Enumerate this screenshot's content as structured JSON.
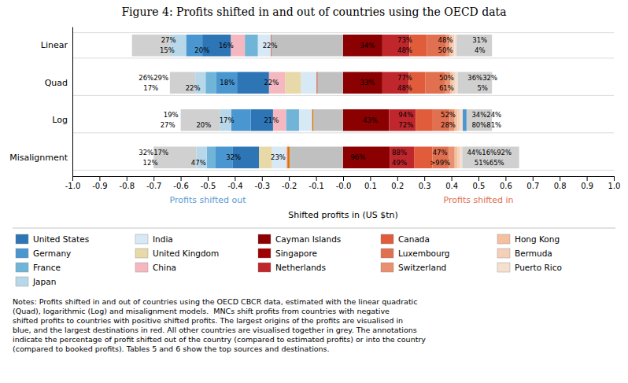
{
  "chart_data": {
    "type": "bar",
    "orientation": "horizontal",
    "stacked": true,
    "grid": true,
    "legend": "bottom",
    "title": "Figure 4: Profits shifted in and out of countries using the OECD data",
    "xlabel": "Shifted profits in (US $tn)",
    "xlim": [
      -1.0,
      1.0
    ],
    "xticks": [
      {
        "value": -1.0,
        "label": "-1.0"
      },
      -0.9,
      -0.8,
      -0.7,
      -0.6,
      -0.5,
      -0.4,
      -0.3,
      -0.2,
      -0.1,
      {
        "value": 0.0,
        "label": "-0.0"
      },
      0.1,
      0.2,
      0.3,
      0.4,
      0.5,
      0.6,
      0.7,
      0.8,
      0.9,
      {
        "value": 1.0,
        "label": "1.0"
      }
    ],
    "categories": [
      "Linear",
      "Quad",
      "Log",
      "Misalignment"
    ],
    "series": [
      {
        "values": [
          -0.265,
          -0.095,
          -0.11,
          -0.198
        ],
        "colors": [
          "#c0c0c0",
          "#c0c0c0",
          "#c0c0c0",
          "#c0c0c0"
        ]
      },
      {
        "values": [
          -0.002,
          -0.003,
          -0.005,
          -0.008
        ],
        "colors": [
          "#cc2200",
          "#cc2200",
          "#e07000",
          "#e07000"
        ]
      },
      {
        "values": [
          -0.048,
          -0.058,
          -0.048,
          -0.005
        ],
        "colors": [
          "#d6e9f5",
          "#d6e9f5",
          "#d6e9f5",
          "#f5b8c0"
        ]
      },
      {
        "values": [
          -0.048,
          -0.058,
          -0.048,
          -0.052
        ],
        "colors": [
          "#70b5d8",
          "#e8d9a8",
          "#70b5d8",
          "#d6e9f5"
        ]
      },
      {
        "values": [
          -0.052,
          -0.06,
          -0.048,
          -0.048
        ],
        "colors": [
          "#f5b8c0",
          "#f5b8c0",
          "#f5b8c0",
          "#e8d9a8"
        ]
      },
      {
        "values": [
          -0.105,
          -0.118,
          -0.082,
          -0.098
        ],
        "colors": [
          "#2e75b6",
          "#2e75b6",
          "#2e75b6",
          "#2e75b6"
        ]
      },
      {
        "values": [
          -0.06,
          -0.078,
          -0.072,
          -0.062
        ],
        "colors": [
          "#4a96d0",
          "#4a96d0",
          "#4a96d0",
          "#4a96d0"
        ]
      },
      {
        "values": [
          -0.06,
          -0.038,
          -0.043,
          -0.033
        ],
        "colors": [
          "#b8d8ea",
          "#70b5d8",
          "#b8d8ea",
          "#70b5d8"
        ]
      },
      {
        "values": [
          -0.14,
          -0.038,
          -0.144,
          -0.038
        ],
        "colors": [
          "#d0d0d0",
          "#b8d8ea",
          "#d0d0d0",
          "#b8d8ea"
        ]
      },
      {
        "values": [
          null,
          -0.094,
          null,
          -0.158
        ],
        "colors": [
          null,
          "#d0d0d0",
          null,
          "#d0d0d0"
        ]
      },
      {
        "values": [
          0.145,
          0.145,
          0.17,
          0.172
        ],
        "colors": [
          "#8b0000",
          "#8b0000",
          "#8b0000",
          "#8b0000"
        ]
      },
      {
        "values": [
          0.1,
          0.098,
          0.098,
          0.09
        ],
        "colors": [
          "#c0272d",
          "#c0272d",
          "#c0272d",
          "#c0272d"
        ]
      },
      {
        "values": [
          0.065,
          0.06,
          0.063,
          0.068
        ],
        "colors": [
          "#e05c3a",
          "#e05c3a",
          "#e05c3a",
          "#e05c3a"
        ]
      },
      {
        "values": [
          0.068,
          0.072,
          0.063,
          0.06
        ],
        "colors": [
          "#e07050",
          "#e07050",
          "#e07050",
          "#e07050"
        ]
      },
      {
        "values": [
          0.015,
          0.02,
          0.018,
          0.022
        ],
        "colors": [
          "#e89070",
          "#e89070",
          "#e89070",
          "#e89070"
        ]
      },
      {
        "values": [
          0.01,
          0.01,
          0.01,
          0.01
        ],
        "colors": [
          "#f5c0a0",
          "#f5c0a0",
          "#f5c0a0",
          "#f5c0a0"
        ]
      },
      {
        "values": [
          0.008,
          0.01,
          0.01,
          0.01
        ],
        "colors": [
          "#f5d0b8",
          "#f5d0b8",
          "#f5d0b8",
          "#f5d0b8"
        ]
      },
      {
        "values": [
          0.008,
          0.008,
          0.01,
          0.008
        ],
        "colors": [
          "#f5e0d0",
          "#f5e0d0",
          "#f5e0d0",
          "#f5e0d0"
        ]
      },
      {
        "values": [
          0.131,
          0.127,
          0.014,
          0.21
        ],
        "colors": [
          "#d0d0d0",
          "#d0d0d0",
          "#4a96d0",
          "#d0d0d0"
        ]
      },
      {
        "values": [
          null,
          null,
          0.094,
          null
        ],
        "colors": [
          null,
          null,
          "#d0d0d0",
          null
        ]
      }
    ],
    "annotations": [
      {
        "category": "Linear",
        "text": "27%",
        "x": -0.645,
        "dy": 0.14
      },
      {
        "category": "Linear",
        "text": "15%",
        "x": -0.65,
        "dy": -0.14
      },
      {
        "category": "Linear",
        "text": "20%",
        "x": -0.521,
        "dy": -0.14
      },
      {
        "category": "Linear",
        "text": "16%",
        "x": -0.432,
        "dy": 0.0
      },
      {
        "category": "Linear",
        "text": "22%",
        "x": -0.27,
        "dy": 0.0
      },
      {
        "category": "Linear",
        "text": "34%",
        "x": 0.09,
        "dy": 0.0
      },
      {
        "category": "Linear",
        "text": "73%",
        "x": 0.228,
        "dy": 0.14
      },
      {
        "category": "Linear",
        "text": "48%",
        "x": 0.228,
        "dy": -0.14
      },
      {
        "category": "Linear",
        "text": "48%",
        "x": 0.378,
        "dy": 0.14
      },
      {
        "category": "Linear",
        "text": "50%",
        "x": 0.378,
        "dy": -0.14
      },
      {
        "category": "Linear",
        "text": "31%",
        "x": 0.505,
        "dy": 0.14
      },
      {
        "category": "Linear",
        "text": "4%",
        "x": 0.505,
        "dy": -0.14
      },
      {
        "category": "Quad",
        "text": "26%29%",
        "x": -0.7,
        "dy": 0.14
      },
      {
        "category": "Quad",
        "text": "17%",
        "x": -0.71,
        "dy": -0.14
      },
      {
        "category": "Quad",
        "text": "22%",
        "x": -0.555,
        "dy": -0.14
      },
      {
        "category": "Quad",
        "text": "18%",
        "x": -0.428,
        "dy": 0.0
      },
      {
        "category": "Quad",
        "text": "22%",
        "x": -0.265,
        "dy": 0.0
      },
      {
        "category": "Quad",
        "text": "33%",
        "x": 0.09,
        "dy": 0.0
      },
      {
        "category": "Quad",
        "text": "77%",
        "x": 0.228,
        "dy": 0.14
      },
      {
        "category": "Quad",
        "text": "48%",
        "x": 0.228,
        "dy": -0.14
      },
      {
        "category": "Quad",
        "text": "50%",
        "x": 0.382,
        "dy": 0.14
      },
      {
        "category": "Quad",
        "text": "61%",
        "x": 0.382,
        "dy": -0.14
      },
      {
        "category": "Quad",
        "text": "36%32%",
        "x": 0.515,
        "dy": 0.14
      },
      {
        "category": "Quad",
        "text": "5%",
        "x": 0.515,
        "dy": -0.14
      },
      {
        "category": "Log",
        "text": "19%",
        "x": -0.636,
        "dy": 0.14
      },
      {
        "category": "Log",
        "text": "27%",
        "x": -0.648,
        "dy": -0.14
      },
      {
        "category": "Log",
        "text": "20%",
        "x": -0.515,
        "dy": -0.14
      },
      {
        "category": "Log",
        "text": "17%",
        "x": -0.43,
        "dy": 0.0
      },
      {
        "category": "Log",
        "text": "21%",
        "x": -0.265,
        "dy": 0.0
      },
      {
        "category": "Log",
        "text": "43%",
        "x": 0.1,
        "dy": 0.0
      },
      {
        "category": "Log",
        "text": "94%",
        "x": 0.232,
        "dy": 0.14
      },
      {
        "category": "Log",
        "text": "72%",
        "x": 0.232,
        "dy": -0.14
      },
      {
        "category": "Log",
        "text": "52%",
        "x": 0.388,
        "dy": 0.14
      },
      {
        "category": "Log",
        "text": "28%",
        "x": 0.388,
        "dy": -0.14
      },
      {
        "category": "Log",
        "text": "34%24%",
        "x": 0.53,
        "dy": 0.14
      },
      {
        "category": "Log",
        "text": "80%81%",
        "x": 0.53,
        "dy": -0.14
      },
      {
        "category": "Misalignment",
        "text": "32%17%",
        "x": -0.7,
        "dy": 0.14
      },
      {
        "category": "Misalignment",
        "text": "12%",
        "x": -0.712,
        "dy": -0.14
      },
      {
        "category": "Misalignment",
        "text": "47%",
        "x": -0.534,
        "dy": -0.14
      },
      {
        "category": "Misalignment",
        "text": "32%",
        "x": -0.405,
        "dy": 0.0
      },
      {
        "category": "Misalignment",
        "text": "23%",
        "x": -0.24,
        "dy": 0.0
      },
      {
        "category": "Misalignment",
        "text": "96%",
        "x": 0.055,
        "dy": 0.0
      },
      {
        "category": "Misalignment",
        "text": "88%",
        "x": 0.208,
        "dy": 0.14
      },
      {
        "category": "Misalignment",
        "text": "49%",
        "x": 0.208,
        "dy": -0.14
      },
      {
        "category": "Misalignment",
        "text": "47%",
        "x": 0.358,
        "dy": 0.14
      },
      {
        "category": "Misalignment",
        "text": ">99%",
        "x": 0.358,
        "dy": -0.14
      },
      {
        "category": "Misalignment",
        "text": "44%16%92%",
        "x": 0.54,
        "dy": 0.14
      },
      {
        "category": "Misalignment",
        "text": "51%65%",
        "x": 0.54,
        "dy": -0.14
      }
    ],
    "direction_labels": [
      {
        "text": "Profits shifted out",
        "color": "#5b9bd5"
      },
      {
        "text": "Profits shifted in",
        "color": "#e07050"
      }
    ],
    "legend_columns": [
      [
        {
          "label": "United States",
          "color": "#2e75b6"
        },
        {
          "label": "Germany",
          "color": "#4a96d0"
        },
        {
          "label": "France",
          "color": "#70b5d8"
        },
        {
          "label": "Japan",
          "color": "#b8d8ea"
        }
      ],
      [
        {
          "label": "India",
          "color": "#d6e9f5"
        },
        {
          "label": "United Kingdom",
          "color": "#e8d9a8"
        },
        {
          "label": "China",
          "color": "#f5b8c0"
        }
      ],
      [
        {
          "label": "Cayman Islands",
          "color": "#8b0000"
        },
        {
          "label": "Singapore",
          "color": "#a00000"
        },
        {
          "label": "Netherlands",
          "color": "#c0272d"
        }
      ],
      [
        {
          "label": "Canada",
          "color": "#e05c3a"
        },
        {
          "label": "Luxembourg",
          "color": "#e07050"
        },
        {
          "label": "Switzerland",
          "color": "#e89070"
        }
      ],
      [
        {
          "label": "Hong Kong",
          "color": "#f5c0a0"
        },
        {
          "label": "Bermuda",
          "color": "#f5d0b8"
        },
        {
          "label": "Puerto Rico",
          "color": "#f5e0d0"
        }
      ]
    ],
    "notes": "Notes: Profits shifted in and out of countries using the OECD CBCR data, estimated with the linear quadratic\n(Quad), logarithmic (Log) and misalignment models.  MNCs shift profits from countries with negative\nshifted profits to countries with positive shifted profits. The largest origins of the profits are visualised in\nblue, and the largest destinations in red. All other countries are visualised together in grey. The annotations\nindicate the percentage of profit shifted out of the country (compared to estimated profits) or into the country\n(compared to booked profits). Tables 5 and 6 show the top sources and destinations."
  }
}
